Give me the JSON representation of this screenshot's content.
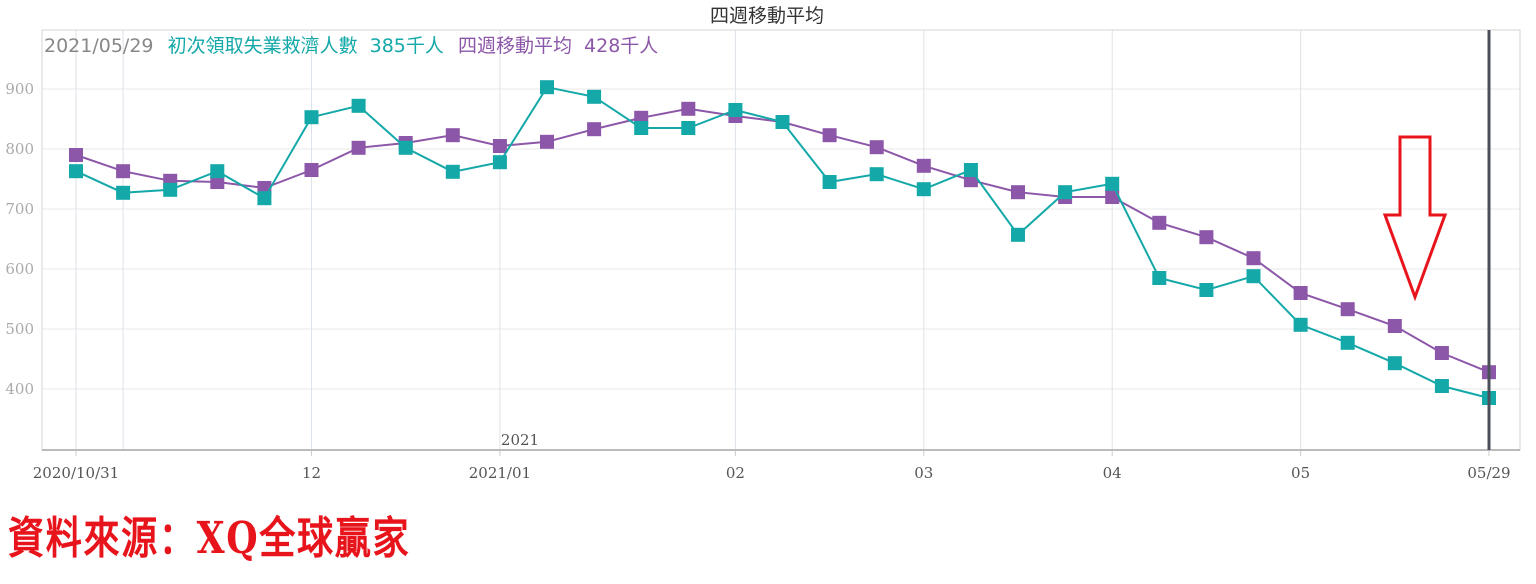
{
  "chart_data": {
    "type": "line",
    "title": "四週移動平均",
    "legend": {
      "date": "2021/05/29",
      "series1_label": "初次領取失業救濟人數",
      "series1_value": "385",
      "series2_label": "四週移動平均",
      "series2_value": "428",
      "unit": "千人"
    },
    "year_marker": "2021",
    "ylim": [
      300,
      960
    ],
    "yticks": [
      400,
      500,
      600,
      700,
      800,
      900
    ],
    "xticks": [
      {
        "label": "2020/10/31",
        "index": 0
      },
      {
        "label": "12",
        "index": 5
      },
      {
        "label": "2021/01",
        "index": 9
      },
      {
        "label": "02",
        "index": 14
      },
      {
        "label": "03",
        "index": 18
      },
      {
        "label": "04",
        "index": 22
      },
      {
        "label": "05",
        "index": 26
      },
      {
        "label": "05/29",
        "index": 30
      }
    ],
    "month_gridlines": [
      0,
      1,
      5,
      9,
      14,
      18,
      22,
      26,
      30
    ],
    "series": [
      {
        "name": "初次領取失業救濟人數",
        "color": "#14a8a8",
        "values": [
          763,
          727,
          732,
          763,
          718,
          853,
          872,
          802,
          762,
          778,
          903,
          887,
          835,
          835,
          865,
          845,
          745,
          758,
          733,
          765,
          657,
          728,
          742,
          585,
          565,
          588,
          507,
          477,
          443,
          405,
          385
        ]
      },
      {
        "name": "四週移動平均",
        "color": "#8c57a8",
        "values": [
          790,
          763,
          747,
          745,
          735,
          765,
          802,
          810,
          823,
          805,
          812,
          833,
          852,
          867,
          855,
          845,
          823,
          803,
          772,
          748,
          728,
          720,
          720,
          677,
          653,
          618,
          560,
          533,
          505,
          460,
          428
        ]
      }
    ]
  },
  "source": "資料來源：XQ全球贏家",
  "colors": {
    "grid": "#e4e4e4",
    "axis_text": "#999999",
    "cursor": "#4a4f5a",
    "arrow": "#e8141c"
  }
}
